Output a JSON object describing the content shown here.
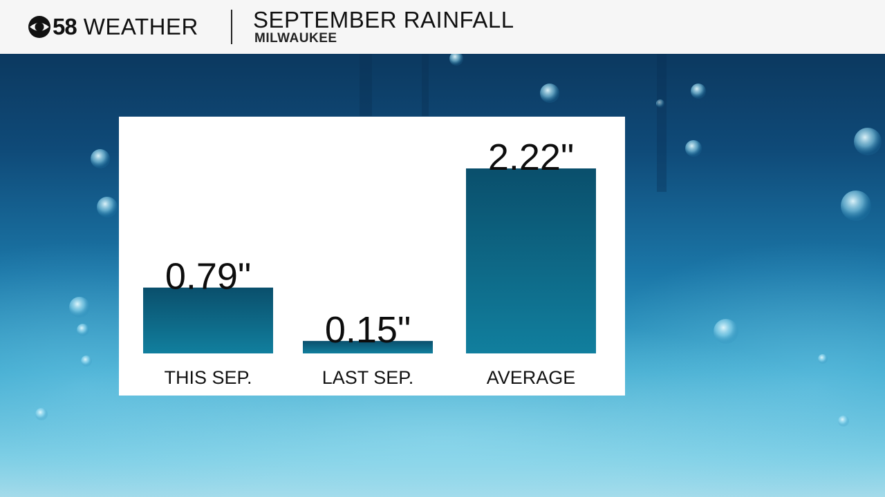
{
  "header": {
    "logo_number": "58",
    "logo_word": "WEATHER",
    "title": "SEPTEMBER RAINFALL",
    "subtitle": "MILWAUKEE"
  },
  "icons": {
    "logo": "cbs-eye-icon"
  },
  "colors": {
    "bar_top": "#0a4f6c",
    "bar_bottom": "#117f9e",
    "header_bg": "#f6f6f6",
    "panel_bg": "#ffffff"
  },
  "chart_data": {
    "type": "bar",
    "title": "SEPTEMBER RAINFALL",
    "subtitle": "MILWAUKEE",
    "categories": [
      "THIS SEP.",
      "LAST SEP.",
      "AVERAGE"
    ],
    "values": [
      0.79,
      0.15,
      2.22
    ],
    "value_labels": [
      "0.79\"",
      "0.15\"",
      "2.22\""
    ],
    "units": "inches",
    "ylim": [
      0,
      2.22
    ],
    "grid": false,
    "legend": "none"
  }
}
